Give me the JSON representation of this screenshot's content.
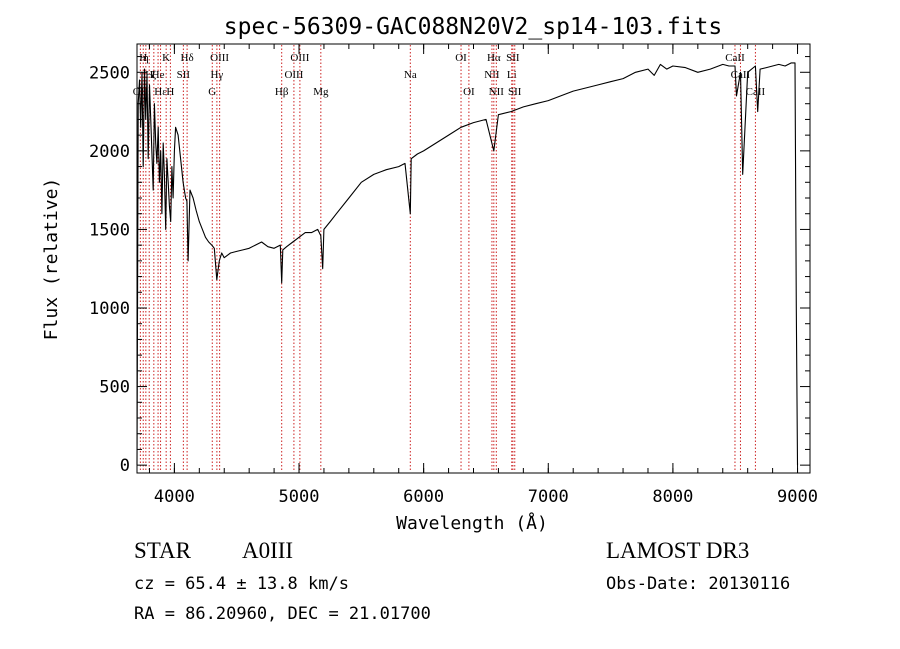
{
  "chart_data": {
    "type": "line",
    "title": "spec-56309-GAC088N20V2_sp14-103.fits",
    "xlabel": "Wavelength (Å)",
    "ylabel": "Flux (relative)",
    "xlim": [
      3700,
      9100
    ],
    "ylim": [
      -50,
      2680
    ],
    "xticks": [
      4000,
      5000,
      6000,
      7000,
      8000,
      9000
    ],
    "yticks": [
      0,
      500,
      1000,
      1500,
      2000,
      2500
    ],
    "xtick_labels": [
      "4000",
      "5000",
      "6000",
      "7000",
      "8000",
      "9000"
    ],
    "ytick_labels": [
      "0",
      "500",
      "1000",
      "1500",
      "2000",
      "2500"
    ],
    "line_color": "#000000",
    "marker_color": "#cc2222",
    "series": [
      {
        "name": "flux",
        "x": [
          3700,
          3710,
          3720,
          3730,
          3740,
          3750,
          3760,
          3770,
          3780,
          3790,
          3800,
          3815,
          3830,
          3840,
          3850,
          3860,
          3870,
          3880,
          3890,
          3900,
          3910,
          3920,
          3930,
          3940,
          3950,
          3960,
          3970,
          3980,
          3990,
          4000,
          4010,
          4030,
          4050,
          4070,
          4090,
          4100,
          4110,
          4125,
          4150,
          4175,
          4200,
          4225,
          4250,
          4275,
          4300,
          4320,
          4340,
          4360,
          4380,
          4400,
          4450,
          4500,
          4550,
          4600,
          4650,
          4700,
          4750,
          4800,
          4850,
          4861,
          4870,
          4900,
          4950,
          5000,
          5050,
          5100,
          5150,
          5175,
          5190,
          5200,
          5250,
          5300,
          5400,
          5500,
          5600,
          5700,
          5800,
          5850,
          5893,
          5900,
          5950,
          6000,
          6100,
          6200,
          6300,
          6400,
          6500,
          6563,
          6600,
          6700,
          6800,
          6900,
          7000,
          7100,
          7200,
          7300,
          7400,
          7500,
          7600,
          7700,
          7800,
          7850,
          7900,
          7950,
          8000,
          8100,
          8200,
          8300,
          8400,
          8450,
          8498,
          8510,
          8542,
          8560,
          8600,
          8662,
          8680,
          8700,
          8750,
          8800,
          8850,
          8900,
          8950,
          8980,
          8990,
          9000
        ],
        "y": [
          0,
          2300,
          2450,
          2150,
          2500,
          1900,
          2520,
          2200,
          2480,
          1950,
          2420,
          2100,
          1750,
          2300,
          2050,
          1920,
          2150,
          1800,
          2000,
          1600,
          2050,
          1850,
          1500,
          1950,
          1800,
          1650,
          1550,
          1900,
          1700,
          2000,
          2150,
          2100,
          1950,
          1800,
          1700,
          1680,
          1300,
          1750,
          1700,
          1620,
          1550,
          1500,
          1450,
          1420,
          1400,
          1380,
          1180,
          1300,
          1350,
          1320,
          1350,
          1360,
          1370,
          1380,
          1400,
          1420,
          1390,
          1380,
          1400,
          1160,
          1370,
          1390,
          1420,
          1450,
          1480,
          1480,
          1500,
          1460,
          1250,
          1500,
          1550,
          1600,
          1700,
          1800,
          1850,
          1880,
          1900,
          1920,
          1600,
          1950,
          1980,
          2000,
          2050,
          2100,
          2150,
          2180,
          2200,
          2000,
          2230,
          2250,
          2280,
          2300,
          2320,
          2350,
          2380,
          2400,
          2420,
          2440,
          2460,
          2500,
          2520,
          2480,
          2550,
          2520,
          2540,
          2530,
          2500,
          2520,
          2550,
          2540,
          2540,
          2350,
          2500,
          1850,
          2500,
          2540,
          2250,
          2520,
          2530,
          2540,
          2550,
          2540,
          2560,
          2560,
          1000,
          0
        ]
      }
    ],
    "line_markers": [
      {
        "wl": 3727,
        "label": "OII",
        "row": 3
      },
      {
        "wl": 3750,
        "label": "H",
        "row": 1
      },
      {
        "wl": 3771,
        "label": "η",
        "row": 1
      },
      {
        "wl": 3798,
        "label": "H",
        "row": 2
      },
      {
        "wl": 3835,
        "label": "ζ",
        "row": 2
      },
      {
        "wl": 3869,
        "label": "He",
        "row": 2
      },
      {
        "wl": 3889,
        "label": "Hε",
        "row": 3
      },
      {
        "wl": 3934,
        "label": "K",
        "row": 1
      },
      {
        "wl": 3968,
        "label": "H",
        "row": 3
      },
      {
        "wl": 4072,
        "label": "SII",
        "row": 2
      },
      {
        "wl": 4102,
        "label": "Hδ",
        "row": 1
      },
      {
        "wl": 4304,
        "label": "G",
        "row": 3
      },
      {
        "wl": 4341,
        "label": "Hγ",
        "row": 2
      },
      {
        "wl": 4363,
        "label": "OIII",
        "row": 1
      },
      {
        "wl": 4861,
        "label": "Hβ",
        "row": 3
      },
      {
        "wl": 4959,
        "label": "OIII",
        "row": 2
      },
      {
        "wl": 5007,
        "label": "OIII",
        "row": 1
      },
      {
        "wl": 5175,
        "label": "Mg",
        "row": 3
      },
      {
        "wl": 5893,
        "label": "Na",
        "row": 2
      },
      {
        "wl": 6300,
        "label": "OI",
        "row": 1
      },
      {
        "wl": 6363,
        "label": "OI",
        "row": 3
      },
      {
        "wl": 6548,
        "label": "NII",
        "row": 2
      },
      {
        "wl": 6563,
        "label": "Hα",
        "row": 1
      },
      {
        "wl": 6583,
        "label": "NII",
        "row": 3
      },
      {
        "wl": 6707,
        "label": "Li",
        "row": 2
      },
      {
        "wl": 6716,
        "label": "SII",
        "row": 1
      },
      {
        "wl": 6731,
        "label": "SII",
        "row": 3
      },
      {
        "wl": 8498,
        "label": "CaII",
        "row": 1
      },
      {
        "wl": 8542,
        "label": "CaII",
        "row": 2
      },
      {
        "wl": 8662,
        "label": "CaII",
        "row": 3
      }
    ]
  },
  "info": {
    "class_label": "STAR",
    "subclass": "A0III",
    "survey": "LAMOST DR3",
    "cz_text": "cz = 65.4 ± 13.8 km/s",
    "obs_date_text": "Obs-Date: 20130116",
    "coords_text": "RA =  86.20960, DEC =  21.01700"
  }
}
